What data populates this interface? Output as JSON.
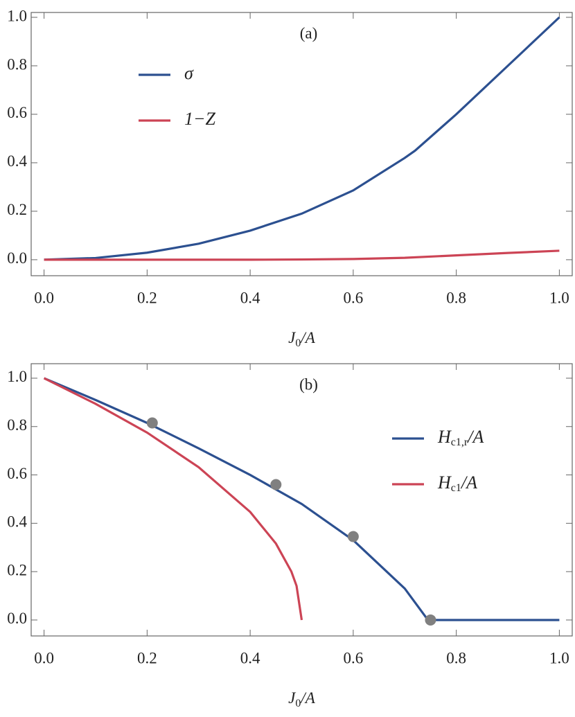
{
  "chart_data": [
    {
      "type": "line",
      "annotation": "(a)",
      "xlabel": {
        "base": "J",
        "sub": "0",
        "tail": "/A"
      },
      "xlim": [
        -0.025,
        1.025
      ],
      "ylim": [
        -0.066,
        1.02
      ],
      "xticks": [
        {
          "value": 0,
          "label": "0.0"
        },
        {
          "value": 0.2,
          "label": "0.2"
        },
        {
          "value": 0.4,
          "label": "0.4"
        },
        {
          "value": 0.6,
          "label": "0.6"
        },
        {
          "value": 0.8,
          "label": "0.8"
        },
        {
          "value": 1,
          "label": "1.0"
        }
      ],
      "yticks": [
        {
          "value": 0,
          "label": "0.0"
        },
        {
          "value": 0.2,
          "label": "0.2"
        },
        {
          "value": 0.4,
          "label": "0.4"
        },
        {
          "value": 0.6,
          "label": "0.6"
        },
        {
          "value": 0.8,
          "label": "0.8"
        },
        {
          "value": 1,
          "label": "1.0"
        }
      ],
      "legend": "upper left",
      "series": [
        {
          "name": "σ",
          "color": "#2c5090",
          "x": [
            0,
            0.1,
            0.2,
            0.3,
            0.4,
            0.5,
            0.6,
            0.7,
            0.72,
            0.8,
            0.9,
            1.0
          ],
          "values": [
            0,
            0.007,
            0.029,
            0.066,
            0.12,
            0.19,
            0.286,
            0.42,
            0.45,
            0.6,
            0.8,
            1.0
          ]
        },
        {
          "name": "1−Z",
          "color": "#cc4455",
          "x": [
            0,
            0.2,
            0.4,
            0.5,
            0.6,
            0.7,
            0.8,
            0.9,
            1.0
          ],
          "values": [
            0,
            0,
            0,
            0.001,
            0.003,
            0.008,
            0.018,
            0.028,
            0.037
          ]
        }
      ]
    },
    {
      "type": "line",
      "annotation": "(b)",
      "xlabel": {
        "base": "J",
        "sub": "0",
        "tail": "/A"
      },
      "xlim": [
        -0.025,
        1.025
      ],
      "ylim": [
        -0.066,
        1.06
      ],
      "xticks": [
        {
          "value": 0,
          "label": "0.0"
        },
        {
          "value": 0.2,
          "label": "0.2"
        },
        {
          "value": 0.4,
          "label": "0.4"
        },
        {
          "value": 0.6,
          "label": "0.6"
        },
        {
          "value": 0.8,
          "label": "0.8"
        },
        {
          "value": 1,
          "label": "1.0"
        }
      ],
      "yticks": [
        {
          "value": 0,
          "label": "0.0"
        },
        {
          "value": 0.2,
          "label": "0.2"
        },
        {
          "value": 0.4,
          "label": "0.4"
        },
        {
          "value": 0.6,
          "label": "0.6"
        },
        {
          "value": 0.8,
          "label": "0.8"
        },
        {
          "value": 1,
          "label": "1.0"
        }
      ],
      "legend": "center right",
      "series": [
        {
          "name": {
            "base": "H",
            "sub": "c1,r",
            "tail": "/A"
          },
          "color": "#2c5090",
          "x": [
            0,
            0.1,
            0.2,
            0.3,
            0.4,
            0.5,
            0.6,
            0.7,
            0.745,
            0.8,
            1.0
          ],
          "values": [
            1,
            0.91,
            0.815,
            0.71,
            0.6,
            0.48,
            0.33,
            0.13,
            0,
            0,
            0
          ]
        },
        {
          "name": {
            "base": "H",
            "sub": "c1",
            "tail": "/A"
          },
          "color": "#cc4455",
          "x": [
            0,
            0.1,
            0.2,
            0.3,
            0.4,
            0.45,
            0.48,
            0.49,
            0.5
          ],
          "values": [
            1,
            0.894,
            0.775,
            0.632,
            0.447,
            0.316,
            0.2,
            0.141,
            0
          ]
        }
      ],
      "points": {
        "color": "#808080",
        "x": [
          0.21,
          0.45,
          0.6,
          0.75
        ],
        "values": [
          0.815,
          0.56,
          0.345,
          0
        ]
      }
    }
  ]
}
